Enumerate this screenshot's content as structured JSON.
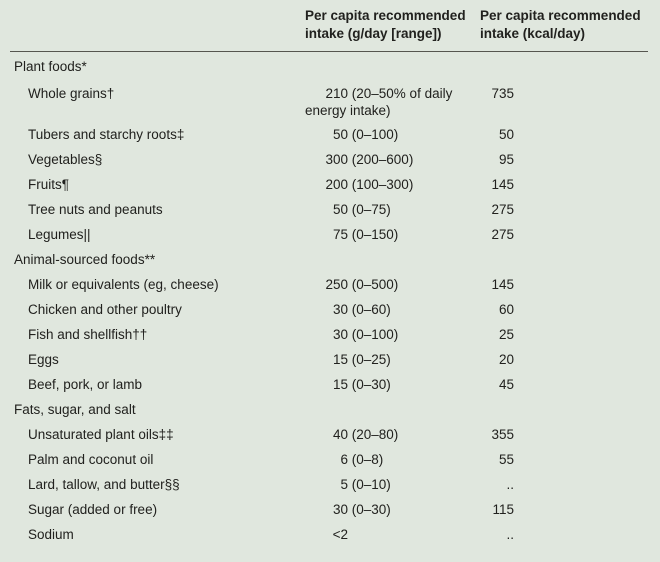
{
  "page": {
    "background_color": "#e0e7de",
    "text_color": "#21211e",
    "rule_color": "#56564f"
  },
  "header": {
    "gday": {
      "line1": "Per capita recommended",
      "line2": "intake (g/day [range])"
    },
    "kcal": {
      "line1": "Per capita recommended",
      "line2": "intake (kcal/day)"
    }
  },
  "rows": [
    {
      "type": "section",
      "label": "Plant foods*",
      "g_num": "",
      "g_range": "",
      "kcal": ""
    },
    {
      "type": "item",
      "label": "Whole grains†",
      "g_num": "210",
      "g_range": "(20–50% of daily energy intake)",
      "kcal": "735"
    },
    {
      "type": "item",
      "label": "Tubers and starchy roots‡",
      "g_num": "50",
      "g_range": "(0–100)",
      "kcal": "50"
    },
    {
      "type": "item",
      "label": "Vegetables§",
      "g_num": "300",
      "g_range": "(200–600)",
      "kcal": "95"
    },
    {
      "type": "item",
      "label": "Fruits¶",
      "g_num": "200",
      "g_range": "(100–300)",
      "kcal": "145"
    },
    {
      "type": "item",
      "label": "Tree nuts and peanuts",
      "g_num": "50",
      "g_range": "(0–75)",
      "kcal": "275"
    },
    {
      "type": "item",
      "label": "Legumes||",
      "g_num": "75",
      "g_range": "(0–150)",
      "kcal": "275"
    },
    {
      "type": "section",
      "label": "Animal-sourced foods**",
      "g_num": "",
      "g_range": "",
      "kcal": ""
    },
    {
      "type": "item",
      "label": "Milk or equivalents (eg, cheese)",
      "g_num": "250",
      "g_range": "(0–500)",
      "kcal": "145"
    },
    {
      "type": "item",
      "label": "Chicken and other poultry",
      "g_num": "30",
      "g_range": "(0–60)",
      "kcal": "60"
    },
    {
      "type": "item",
      "label": "Fish and shellfish††",
      "g_num": "30",
      "g_range": "(0–100)",
      "kcal": "25"
    },
    {
      "type": "item",
      "label": "Eggs",
      "g_num": "15",
      "g_range": "(0–25)",
      "kcal": "20"
    },
    {
      "type": "item",
      "label": "Beef, pork, or lamb",
      "g_num": "15",
      "g_range": "(0–30)",
      "kcal": "45"
    },
    {
      "type": "section",
      "label": "Fats, sugar, and salt",
      "g_num": "",
      "g_range": "",
      "kcal": ""
    },
    {
      "type": "item",
      "label": "Unsaturated plant oils‡‡",
      "g_num": "40",
      "g_range": "(20–80)",
      "kcal": "355"
    },
    {
      "type": "item",
      "label": "Palm and coconut oil",
      "g_num": "6",
      "g_range": "(0–8)",
      "kcal": "55"
    },
    {
      "type": "item",
      "label": "Lard, tallow, and butter§§",
      "g_num": "5",
      "g_range": "(0–10)",
      "kcal": ".."
    },
    {
      "type": "item",
      "label": "Sugar (added or free)",
      "g_num": "30",
      "g_range": "(0–30)",
      "kcal": "115"
    },
    {
      "type": "item",
      "label": "Sodium",
      "g_num": "<2",
      "g_range": "",
      "kcal": ".."
    }
  ]
}
